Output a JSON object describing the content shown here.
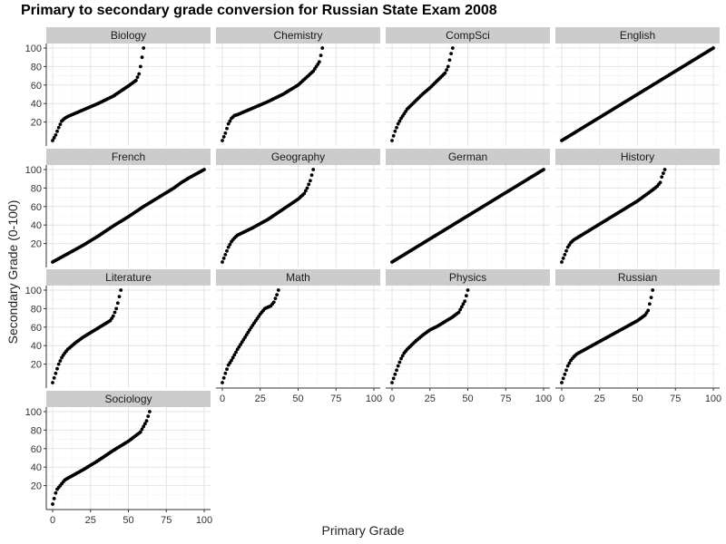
{
  "chart_data": {
    "type": "scatter",
    "title": "Primary to secondary grade conversion for Russian State Exam 2008",
    "xlabel": "Primary Grade",
    "ylabel": "Secondary Grade (0-100)",
    "xlim": [
      0,
      100
    ],
    "ylim": [
      0,
      100
    ],
    "x_ticks": [
      "0",
      "25",
      "50",
      "75",
      "100"
    ],
    "y_ticks": [
      "20",
      "40",
      "60",
      "80",
      "100"
    ],
    "grid": true,
    "layout": "facet grid, 4 columns",
    "marker_color": "#000000",
    "panels": [
      {
        "name": "Biology",
        "max_primary": 60,
        "points": [
          [
            0,
            0
          ],
          [
            2,
            6
          ],
          [
            4,
            14
          ],
          [
            6,
            21
          ],
          [
            8,
            24
          ],
          [
            10,
            26
          ],
          [
            20,
            33
          ],
          [
            30,
            40
          ],
          [
            40,
            48
          ],
          [
            50,
            59
          ],
          [
            55,
            65
          ],
          [
            57,
            72
          ],
          [
            58,
            80
          ],
          [
            59,
            90
          ],
          [
            60,
            100
          ]
        ]
      },
      {
        "name": "Chemistry",
        "max_primary": 66,
        "points": [
          [
            0,
            0
          ],
          [
            2,
            8
          ],
          [
            4,
            18
          ],
          [
            6,
            24
          ],
          [
            8,
            27
          ],
          [
            10,
            28
          ],
          [
            20,
            35
          ],
          [
            30,
            42
          ],
          [
            40,
            50
          ],
          [
            50,
            60
          ],
          [
            60,
            75
          ],
          [
            62,
            80
          ],
          [
            64,
            85
          ],
          [
            65,
            92
          ],
          [
            66,
            100
          ]
        ]
      },
      {
        "name": "CompSci",
        "max_primary": 40,
        "points": [
          [
            0,
            0
          ],
          [
            2,
            10
          ],
          [
            4,
            18
          ],
          [
            6,
            24
          ],
          [
            8,
            29
          ],
          [
            10,
            34
          ],
          [
            15,
            42
          ],
          [
            20,
            50
          ],
          [
            25,
            57
          ],
          [
            30,
            65
          ],
          [
            35,
            73
          ],
          [
            37,
            80
          ],
          [
            38,
            87
          ],
          [
            39,
            94
          ],
          [
            40,
            100
          ]
        ]
      },
      {
        "name": "English",
        "max_primary": 100,
        "points": [
          [
            0,
            0
          ],
          [
            10,
            10
          ],
          [
            20,
            20
          ],
          [
            30,
            30
          ],
          [
            40,
            40
          ],
          [
            50,
            50
          ],
          [
            60,
            60
          ],
          [
            70,
            70
          ],
          [
            80,
            80
          ],
          [
            90,
            90
          ],
          [
            100,
            100
          ]
        ]
      },
      {
        "name": "French",
        "max_primary": 100,
        "points": [
          [
            0,
            0
          ],
          [
            10,
            9
          ],
          [
            20,
            18
          ],
          [
            30,
            28
          ],
          [
            40,
            39
          ],
          [
            50,
            49
          ],
          [
            60,
            60
          ],
          [
            70,
            70
          ],
          [
            80,
            80
          ],
          [
            85,
            86
          ],
          [
            90,
            91
          ],
          [
            100,
            100
          ]
        ]
      },
      {
        "name": "Geography",
        "max_primary": 60,
        "points": [
          [
            0,
            0
          ],
          [
            2,
            8
          ],
          [
            4,
            16
          ],
          [
            6,
            22
          ],
          [
            8,
            26
          ],
          [
            10,
            29
          ],
          [
            20,
            37
          ],
          [
            30,
            46
          ],
          [
            40,
            57
          ],
          [
            50,
            68
          ],
          [
            54,
            74
          ],
          [
            56,
            80
          ],
          [
            58,
            88
          ],
          [
            59,
            94
          ],
          [
            60,
            100
          ]
        ]
      },
      {
        "name": "German",
        "max_primary": 100,
        "points": [
          [
            0,
            0
          ],
          [
            10,
            10
          ],
          [
            20,
            20
          ],
          [
            30,
            30
          ],
          [
            40,
            40
          ],
          [
            50,
            50
          ],
          [
            60,
            60
          ],
          [
            70,
            70
          ],
          [
            80,
            80
          ],
          [
            90,
            90
          ],
          [
            100,
            100
          ]
        ]
      },
      {
        "name": "History",
        "max_primary": 68,
        "points": [
          [
            0,
            0
          ],
          [
            2,
            8
          ],
          [
            4,
            16
          ],
          [
            6,
            21
          ],
          [
            8,
            24
          ],
          [
            10,
            26
          ],
          [
            20,
            36
          ],
          [
            30,
            46
          ],
          [
            40,
            56
          ],
          [
            50,
            66
          ],
          [
            60,
            78
          ],
          [
            63,
            82
          ],
          [
            65,
            86
          ],
          [
            66,
            92
          ],
          [
            68,
            100
          ]
        ]
      },
      {
        "name": "Literature",
        "max_primary": 45,
        "points": [
          [
            0,
            0
          ],
          [
            2,
            10
          ],
          [
            4,
            20
          ],
          [
            6,
            27
          ],
          [
            8,
            32
          ],
          [
            10,
            36
          ],
          [
            15,
            43
          ],
          [
            20,
            49
          ],
          [
            25,
            54
          ],
          [
            30,
            59
          ],
          [
            35,
            64
          ],
          [
            38,
            67
          ],
          [
            40,
            72
          ],
          [
            42,
            80
          ],
          [
            43,
            86
          ],
          [
            44,
            93
          ],
          [
            45,
            100
          ]
        ]
      },
      {
        "name": "Math",
        "max_primary": 37,
        "points": [
          [
            0,
            0
          ],
          [
            2,
            10
          ],
          [
            4,
            19
          ],
          [
            6,
            24
          ],
          [
            8,
            30
          ],
          [
            10,
            36
          ],
          [
            15,
            49
          ],
          [
            18,
            57
          ],
          [
            20,
            62
          ],
          [
            25,
            74
          ],
          [
            28,
            80
          ],
          [
            32,
            83
          ],
          [
            34,
            87
          ],
          [
            35,
            91
          ],
          [
            36,
            95
          ],
          [
            37,
            100
          ]
        ]
      },
      {
        "name": "Physics",
        "max_primary": 50,
        "points": [
          [
            0,
            0
          ],
          [
            2,
            9
          ],
          [
            4,
            18
          ],
          [
            6,
            26
          ],
          [
            8,
            32
          ],
          [
            10,
            36
          ],
          [
            15,
            44
          ],
          [
            20,
            51
          ],
          [
            25,
            57
          ],
          [
            30,
            61
          ],
          [
            35,
            66
          ],
          [
            40,
            71
          ],
          [
            44,
            76
          ],
          [
            46,
            82
          ],
          [
            48,
            88
          ],
          [
            49,
            94
          ],
          [
            50,
            100
          ]
        ]
      },
      {
        "name": "Russian",
        "max_primary": 60,
        "points": [
          [
            0,
            0
          ],
          [
            2,
            9
          ],
          [
            4,
            18
          ],
          [
            6,
            24
          ],
          [
            8,
            28
          ],
          [
            10,
            31
          ],
          [
            20,
            40
          ],
          [
            30,
            49
          ],
          [
            40,
            58
          ],
          [
            50,
            67
          ],
          [
            55,
            73
          ],
          [
            57,
            78
          ],
          [
            58,
            85
          ],
          [
            59,
            92
          ],
          [
            60,
            100
          ]
        ]
      },
      {
        "name": "Sociology",
        "max_primary": 64,
        "points": [
          [
            0,
            0
          ],
          [
            1,
            6
          ],
          [
            2,
            12
          ],
          [
            3,
            16
          ],
          [
            5,
            20
          ],
          [
            8,
            26
          ],
          [
            10,
            28
          ],
          [
            20,
            37
          ],
          [
            30,
            47
          ],
          [
            40,
            58
          ],
          [
            50,
            68
          ],
          [
            58,
            78
          ],
          [
            60,
            84
          ],
          [
            62,
            90
          ],
          [
            63,
            95
          ],
          [
            64,
            100
          ]
        ]
      }
    ]
  }
}
